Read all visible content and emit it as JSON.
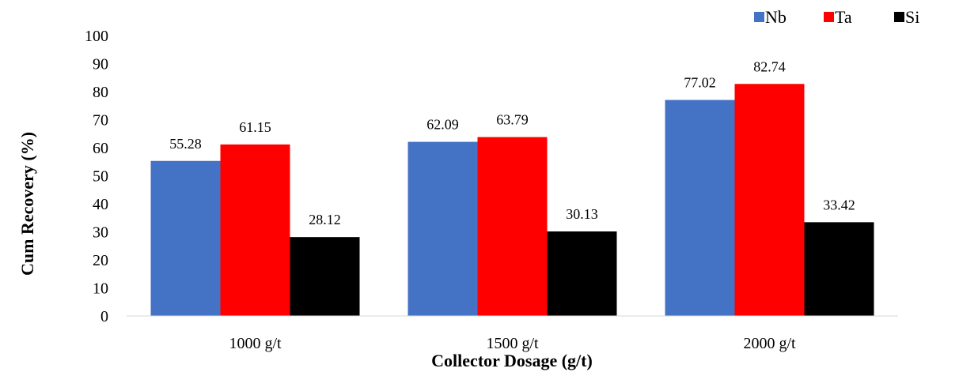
{
  "chart_data": {
    "type": "bar",
    "categories": [
      "1000 g/t",
      "1500 g/t",
      "2000 g/t"
    ],
    "series": [
      {
        "name": "Nb",
        "values": [
          55.28,
          62.09,
          77.02
        ],
        "color": "#4472C4"
      },
      {
        "name": "Ta",
        "values": [
          61.15,
          63.79,
          82.74
        ],
        "color": "#FF0000"
      },
      {
        "name": "Si",
        "values": [
          28.12,
          30.13,
          33.42
        ],
        "color": "#000000"
      }
    ],
    "xlabel": "Collector Dosage (g/t)",
    "ylabel": "Cum Recovery (%)",
    "ylim": [
      0,
      100
    ],
    "yticks": [
      0,
      10,
      20,
      30,
      40,
      50,
      60,
      70,
      80,
      90,
      100
    ],
    "grid": false,
    "legend_position": "top-right"
  }
}
